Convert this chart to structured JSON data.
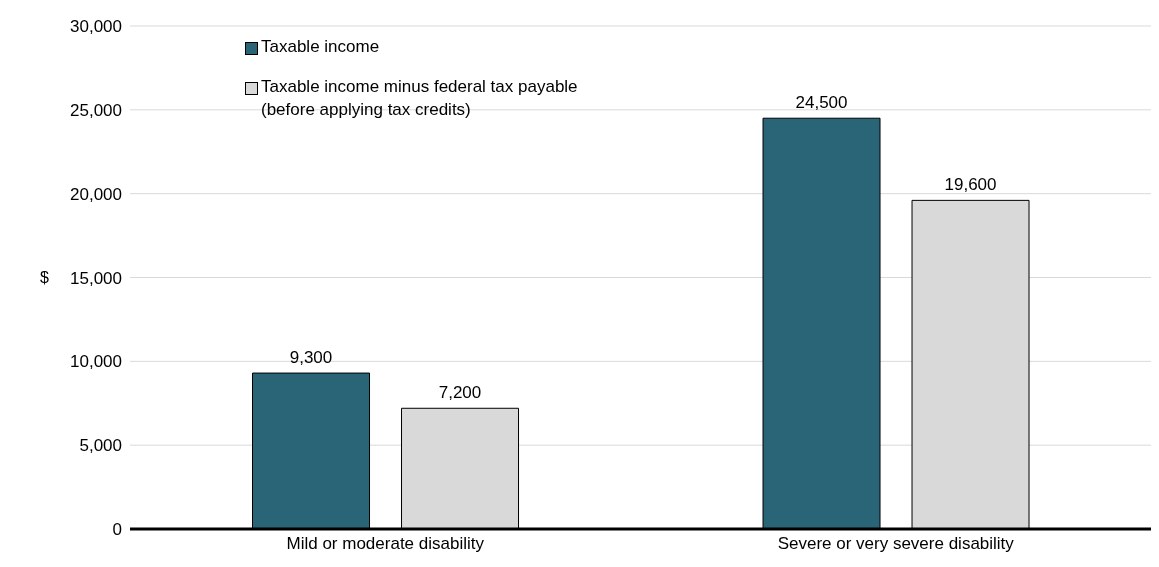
{
  "chart_data": {
    "type": "bar",
    "ylabel": "$",
    "categories": [
      "Mild or moderate disability",
      "Severe or very severe disability"
    ],
    "series": [
      {
        "name": "Taxable income",
        "color": "#2a6577",
        "values": [
          9300,
          24500
        ],
        "value_labels": [
          "9,300",
          "24,500"
        ]
      },
      {
        "name": "Taxable income minus federal tax payable\n(before applying tax credits)",
        "color": "#d9d9d9",
        "values": [
          7200,
          19600
        ],
        "value_labels": [
          "7,200",
          "19,600"
        ]
      }
    ],
    "ylim": [
      0,
      30000
    ],
    "yticks": [
      {
        "value": 0,
        "label": "0"
      },
      {
        "value": 5000,
        "label": "5,000"
      },
      {
        "value": 10000,
        "label": "10,000"
      },
      {
        "value": 15000,
        "label": "15,000"
      },
      {
        "value": 20000,
        "label": "20,000"
      },
      {
        "value": 25000,
        "label": "25,000"
      },
      {
        "value": 30000,
        "label": "30,000"
      }
    ],
    "grid": "y",
    "legend": "top left"
  }
}
